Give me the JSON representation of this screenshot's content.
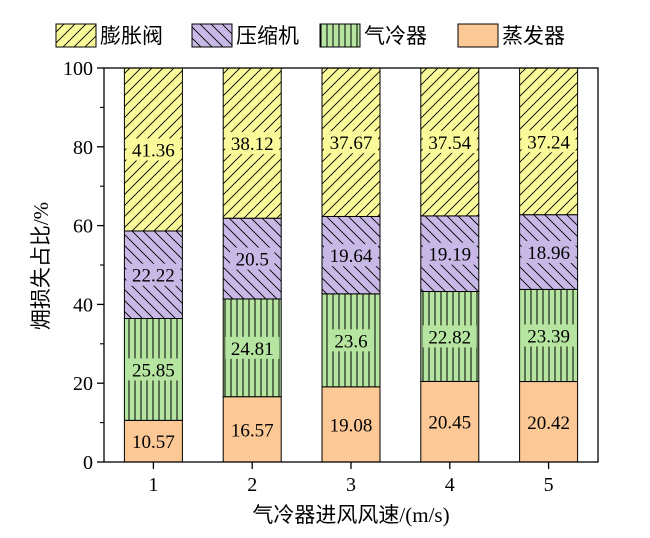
{
  "chart_data": {
    "type": "bar",
    "stacked": true,
    "categories": [
      "1",
      "2",
      "3",
      "4",
      "5"
    ],
    "xlabel": "气冷器进风风速/(m/s)",
    "ylabel": "㶲损失占比/%",
    "ylim": [
      0,
      100
    ],
    "yticks": [
      0,
      20,
      40,
      60,
      80,
      100
    ],
    "grid": false,
    "legend": "top",
    "series": [
      {
        "name": "蒸发器",
        "values": [
          10.57,
          16.57,
          19.08,
          20.45,
          20.42
        ],
        "color": "#fbc896",
        "pattern": "none"
      },
      {
        "name": "气冷器",
        "values": [
          25.85,
          24.81,
          23.6,
          22.82,
          23.39
        ],
        "color": "#b5e5a0",
        "pattern": "vertical-lines"
      },
      {
        "name": "压缩机",
        "values": [
          22.22,
          20.5,
          19.64,
          19.19,
          18.96
        ],
        "color": "#c7b8e6",
        "pattern": "backslash-hatch"
      },
      {
        "name": "膨胀阀",
        "values": [
          41.36,
          38.12,
          37.67,
          37.54,
          37.24
        ],
        "color": "#fafa9a",
        "pattern": "slash-hatch"
      }
    ],
    "legend_order": [
      "膨胀阀",
      "压缩机",
      "气冷器",
      "蒸发器"
    ]
  }
}
